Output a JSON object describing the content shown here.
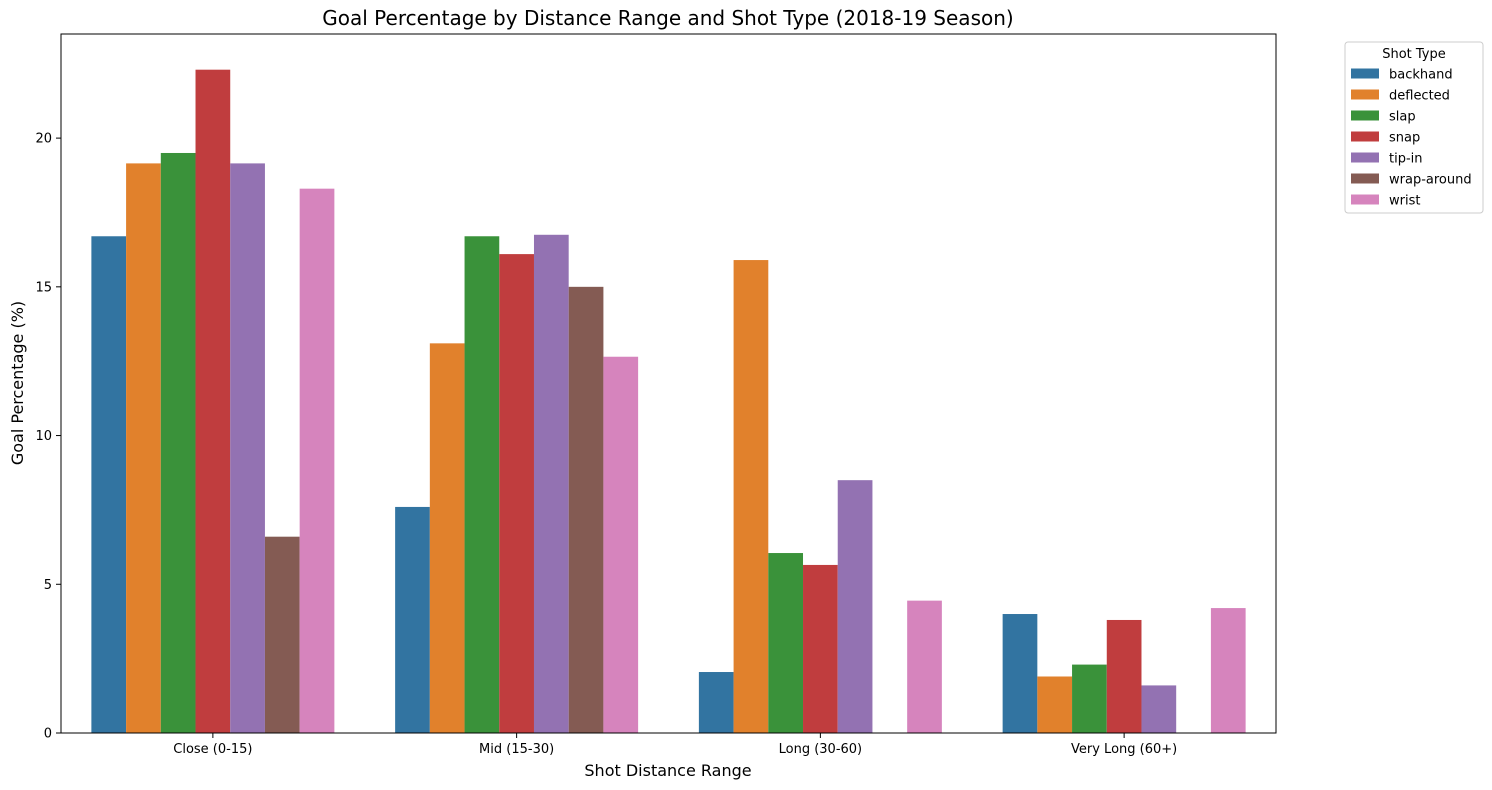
{
  "chart_data": {
    "type": "bar",
    "title": "Goal Percentage by Distance Range and Shot Type (2018-19 Season)",
    "xlabel": "Shot Distance Range",
    "ylabel": "Goal Percentage (%)",
    "ylim": [
      0,
      23.5
    ],
    "yticks": [
      0,
      5,
      10,
      15,
      20
    ],
    "grid": false,
    "legend": {
      "title": "Shot Type",
      "placement": "outside top-right"
    },
    "categories": [
      "Close (0-15)",
      "Mid (15-30)",
      "Long (30-60)",
      "Very Long (60+)"
    ],
    "series": [
      {
        "name": "backhand",
        "color": "#3274a1",
        "values": [
          16.7,
          7.6,
          2.05,
          4.0
        ]
      },
      {
        "name": "deflected",
        "color": "#e1812c",
        "values": [
          19.15,
          13.1,
          15.9,
          1.9
        ]
      },
      {
        "name": "slap",
        "color": "#3a923a",
        "values": [
          19.5,
          16.7,
          6.05,
          2.3
        ]
      },
      {
        "name": "snap",
        "color": "#c03d3e",
        "values": [
          22.3,
          16.1,
          5.65,
          3.8
        ]
      },
      {
        "name": "tip-in",
        "color": "#9372b2",
        "values": [
          19.15,
          16.75,
          8.5,
          1.6
        ]
      },
      {
        "name": "wrap-around",
        "color": "#845b53",
        "values": [
          6.6,
          15.0,
          null,
          null
        ]
      },
      {
        "name": "wrist",
        "color": "#d684bd",
        "values": [
          18.3,
          12.65,
          4.45,
          4.2
        ]
      }
    ]
  }
}
